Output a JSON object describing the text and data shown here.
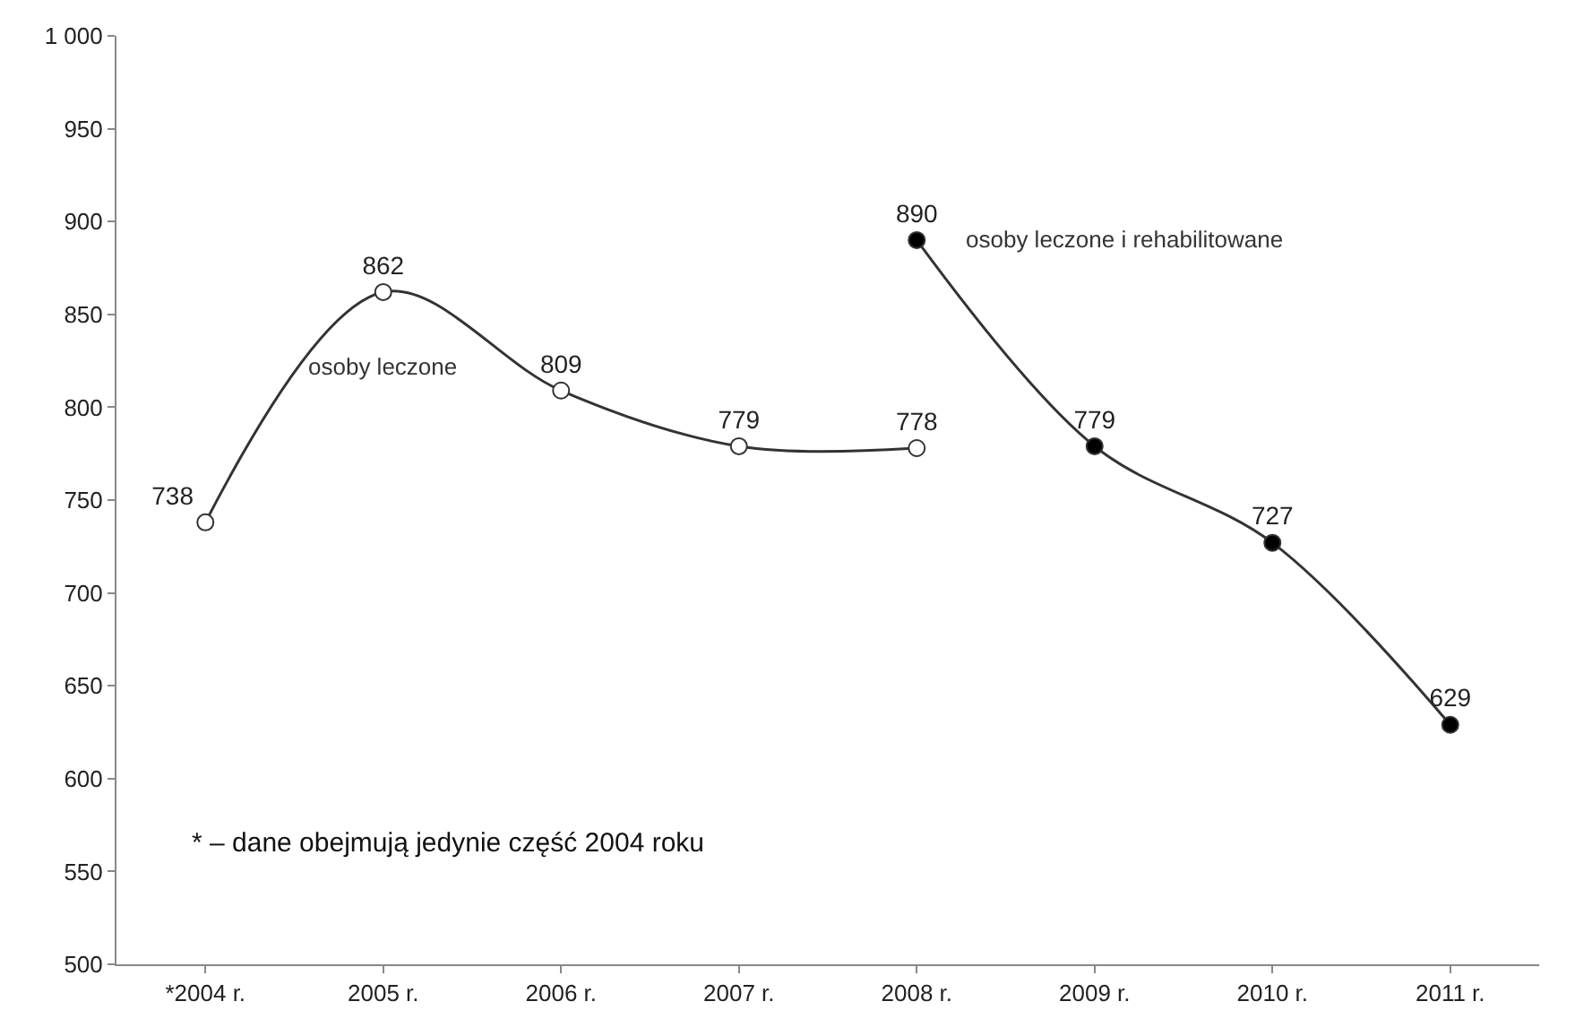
{
  "chart_data": {
    "type": "line",
    "categories": [
      "*2004 r.",
      "2005 r.",
      "2006 r.",
      "2007 r.",
      "2008 r.",
      "2009 r.",
      "2010 r.",
      "2011 r."
    ],
    "series": [
      {
        "name": "osoby leczone",
        "color": "#333333",
        "colors": [
          "#ffffff",
          "#ffffff",
          "#ffffff",
          "#ffffff",
          "#ffffff",
          null,
          null,
          null
        ],
        "values": [
          738,
          862,
          809,
          779,
          778,
          null,
          null,
          null
        ]
      },
      {
        "name": "osoby leczone i rehabilitowane",
        "color": "#333333",
        "colors": [
          null,
          null,
          null,
          null,
          "#000000",
          "#000000",
          "#000000",
          "#000000"
        ],
        "values": [
          null,
          null,
          null,
          null,
          890,
          779,
          727,
          629
        ]
      }
    ],
    "ylim": [
      500,
      1000
    ],
    "yticks": [
      500,
      550,
      600,
      650,
      700,
      750,
      800,
      850,
      900,
      950,
      {
        "value": 1000,
        "label": "1 000"
      }
    ],
    "data_labels": true,
    "marker": "circle",
    "line_style": "solid",
    "grid": false,
    "legend": false,
    "annotations": [
      "* – dane obejmują jedynie część 2004 roku"
    ]
  }
}
